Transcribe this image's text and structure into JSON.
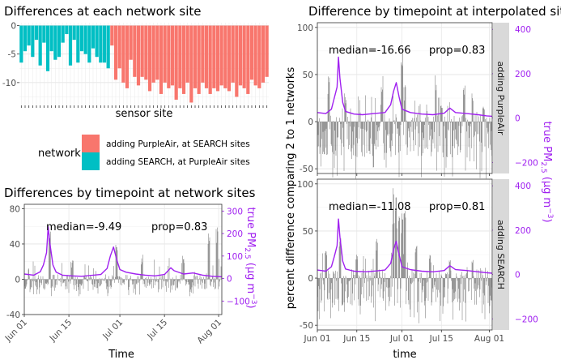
{
  "chart_data": [
    {
      "id": "A",
      "type": "bar",
      "title": "Differences at each network site",
      "xlabel": "sensor site",
      "ylabel": "",
      "ylim": [
        -14,
        0.5
      ],
      "yticks": [
        0,
        -5,
        -10
      ],
      "ytick_labels": [
        "0",
        "-5",
        "-10"
      ],
      "series": [
        {
          "name": "adding SEARCH, at PurpleAir sites",
          "color": "#00BFC4",
          "values": [
            -6.5,
            -4.5,
            -3.5,
            -5.5,
            -2.5,
            -7.0,
            -3.0,
            -8.0,
            -4.5,
            -6.0,
            -5.5,
            -3.0,
            -1.5,
            -7.0,
            -2.5,
            -6.5,
            -4.5,
            -5.0,
            -6.5,
            -4.0,
            -5.5,
            -6.5,
            -6.5,
            -7.5
          ]
        },
        {
          "name": "adding PurpleAir, at SEARCH sites",
          "color": "#F8766D",
          "values": [
            -3.5,
            -9.5,
            -7.5,
            -10.0,
            -11.0,
            -6.0,
            -9.0,
            -10.5,
            -9.0,
            -9.5,
            -11.5,
            -10.0,
            -9.5,
            -12.0,
            -10.0,
            -11.0,
            -10.5,
            -13.0,
            -11.0,
            -12.0,
            -10.0,
            -13.5,
            -11.0,
            -12.0,
            -10.0,
            -11.0,
            -12.0,
            -11.0,
            -11.5,
            -10.5,
            -11.0,
            -11.5,
            -10.0,
            -12.5,
            -10.5,
            -11.0,
            -12.0,
            -9.5,
            -10.5,
            -11.0,
            -10.0,
            -9.0
          ]
        }
      ]
    },
    {
      "id": "C",
      "type": "bar",
      "title": "Differences by timepoint at network sites",
      "xlabel": "Time",
      "ylabel": "",
      "xrange": [
        0,
        62
      ],
      "xticks": [
        0,
        14,
        30,
        44,
        61
      ],
      "xtick_labels": [
        "Jun 01",
        "Jun 15",
        "Jul 01",
        "Jul 15",
        "Aug 01"
      ],
      "ylim": [
        -40,
        85
      ],
      "yticks": [
        80,
        40,
        0,
        -40
      ],
      "ytick_labels": [
        "80",
        "40",
        "0",
        "-40"
      ],
      "y2lim": [
        -160,
        330
      ],
      "y2ticks": [
        300,
        200,
        100,
        0,
        -100
      ],
      "y2tick_labels": [
        "300",
        "200",
        "100",
        "0",
        "−100"
      ],
      "y2label_main": "true PM",
      "y2label_sub": "2.5",
      "y2label_units": " (µg m",
      "y2label_exp": "−3",
      "y2label_close": ")",
      "median_label": "median=-9.49",
      "prop_label": "prop=0.83",
      "series": [
        {
          "name": "percent difference",
          "color": "#595959",
          "seed": 11,
          "base_lo": -12,
          "base_hi": 5,
          "spikes": [
            [
              8,
              58
            ],
            [
              29,
              40
            ],
            [
              50,
              28
            ],
            [
              58,
              52
            ],
            [
              60.5,
              70
            ],
            [
              15,
              22
            ],
            [
              37,
              30
            ]
          ]
        },
        {
          "name": "true PM2.5",
          "color": "#a020f0",
          "pm_points": [
            [
              0,
              20
            ],
            [
              3,
              15
            ],
            [
              5,
              30
            ],
            [
              6,
              60
            ],
            [
              7,
              115
            ],
            [
              7.5,
              230
            ],
            [
              8,
              160
            ],
            [
              9,
              60
            ],
            [
              10,
              28
            ],
            [
              12,
              15
            ],
            [
              15,
              12
            ],
            [
              18,
              10
            ],
            [
              21,
              14
            ],
            [
              24,
              18
            ],
            [
              26,
              45
            ],
            [
              27,
              100
            ],
            [
              28,
              140
            ],
            [
              29,
              85
            ],
            [
              30,
              40
            ],
            [
              32,
              28
            ],
            [
              35,
              20
            ],
            [
              38,
              15
            ],
            [
              41,
              12
            ],
            [
              44,
              18
            ],
            [
              46,
              48
            ],
            [
              47,
              35
            ],
            [
              50,
              20
            ],
            [
              53,
              25
            ],
            [
              56,
              15
            ],
            [
              59,
              10
            ],
            [
              62,
              8
            ]
          ]
        }
      ]
    },
    {
      "id": "B1",
      "type": "bar",
      "title": "Difference by timepoint at interpolated sites",
      "strip_label": "adding PurpleAir",
      "xrange": [
        0,
        62
      ],
      "ylim": [
        -55,
        105
      ],
      "yticks": [
        100,
        50,
        0,
        -50
      ],
      "ytick_labels": [
        "100",
        "50",
        "0",
        "-50"
      ],
      "y2lim": [
        -250,
        430
      ],
      "y2ticks": [
        400,
        200,
        0,
        -200
      ],
      "y2tick_labels": [
        "400",
        "200",
        "0",
        "−200"
      ],
      "median_label": "median=-16.66",
      "prop_label": "prop=0.83",
      "series": [
        {
          "name": "percent difference",
          "color": "#595959",
          "seed": 23,
          "base_lo": -38,
          "base_hi": 8,
          "spikes": [
            [
              4,
              48
            ],
            [
              10,
              30
            ],
            [
              23,
              55
            ],
            [
              30,
              75
            ],
            [
              31,
              40
            ],
            [
              42,
              60
            ],
            [
              44,
              20
            ],
            [
              52,
              40
            ],
            [
              55,
              30
            ],
            [
              59,
              18
            ]
          ]
        },
        {
          "name": "true PM2.5",
          "color": "#a020f0",
          "pm_points": [
            [
              0,
              25
            ],
            [
              3,
              20
            ],
            [
              5,
              40
            ],
            [
              6,
              90
            ],
            [
              7,
              140
            ],
            [
              7.5,
              275
            ],
            [
              8,
              180
            ],
            [
              9,
              70
            ],
            [
              10,
              30
            ],
            [
              13,
              18
            ],
            [
              16,
              15
            ],
            [
              20,
              20
            ],
            [
              24,
              25
            ],
            [
              26,
              60
            ],
            [
              27,
              120
            ],
            [
              28,
              160
            ],
            [
              29,
              95
            ],
            [
              30,
              40
            ],
            [
              33,
              25
            ],
            [
              37,
              18
            ],
            [
              41,
              15
            ],
            [
              45,
              22
            ],
            [
              47,
              45
            ],
            [
              49,
              25
            ],
            [
              53,
              20
            ],
            [
              57,
              15
            ],
            [
              60,
              10
            ],
            [
              62,
              8
            ]
          ]
        }
      ]
    },
    {
      "id": "B2",
      "type": "bar",
      "strip_label": "adding SEARCH",
      "xlabel": "time",
      "ylabel": "percent difference comparing 2 to 1 networks",
      "xrange": [
        0,
        62
      ],
      "xticks": [
        0,
        14,
        30,
        44,
        61
      ],
      "xtick_labels": [
        "Jun 01",
        "Jun 15",
        "Jul 01",
        "Jul 15",
        "Aug 01"
      ],
      "ylim": [
        -55,
        105
      ],
      "yticks": [
        100,
        50,
        0,
        -50
      ],
      "ytick_labels": [
        "100",
        "50",
        "0",
        "-50"
      ],
      "y2lim": [
        -250,
        430
      ],
      "y2ticks": [
        400,
        200,
        0,
        -200
      ],
      "y2tick_labels": [
        "400",
        "200",
        "0",
        "−200"
      ],
      "median_label": "median=-11.08",
      "prop_label": "prop=0.81",
      "series": [
        {
          "name": "percent difference",
          "color": "#595959",
          "seed": 37,
          "base_lo": -30,
          "base_hi": 10,
          "spikes": [
            [
              3,
              40
            ],
            [
              8,
              45
            ],
            [
              14,
              30
            ],
            [
              21,
              42
            ],
            [
              27,
              98
            ],
            [
              28,
              92
            ],
            [
              29,
              85
            ],
            [
              30,
              80
            ],
            [
              31,
              75
            ],
            [
              35,
              35
            ],
            [
              40,
              25
            ],
            [
              47,
              30
            ],
            [
              55,
              20
            ]
          ]
        },
        {
          "name": "true PM2.5",
          "color": "#a020f0",
          "pm_points": [
            [
              0,
              20
            ],
            [
              3,
              15
            ],
            [
              5,
              35
            ],
            [
              6,
              80
            ],
            [
              7,
              130
            ],
            [
              7.5,
              250
            ],
            [
              8,
              170
            ],
            [
              9,
              60
            ],
            [
              10,
              25
            ],
            [
              13,
              15
            ],
            [
              17,
              12
            ],
            [
              21,
              16
            ],
            [
              24,
              20
            ],
            [
              26,
              50
            ],
            [
              27,
              110
            ],
            [
              28,
              150
            ],
            [
              29,
              90
            ],
            [
              30,
              35
            ],
            [
              33,
              22
            ],
            [
              37,
              15
            ],
            [
              41,
              12
            ],
            [
              45,
              18
            ],
            [
              47,
              40
            ],
            [
              49,
              22
            ],
            [
              53,
              18
            ],
            [
              57,
              12
            ],
            [
              60,
              8
            ],
            [
              62,
              6
            ]
          ]
        }
      ]
    }
  ],
  "legend": {
    "title": "network",
    "items": [
      {
        "label": "adding PurpleAir, at SEARCH sites",
        "color": "#F8766D"
      },
      {
        "label": "adding SEARCH, at PurpleAir sites",
        "color": "#00BFC4"
      }
    ]
  },
  "right_y2label": {
    "main": "true PM",
    "sub": "2.5",
    "units": " (µg m",
    "exp": "−3",
    "close": ")"
  }
}
